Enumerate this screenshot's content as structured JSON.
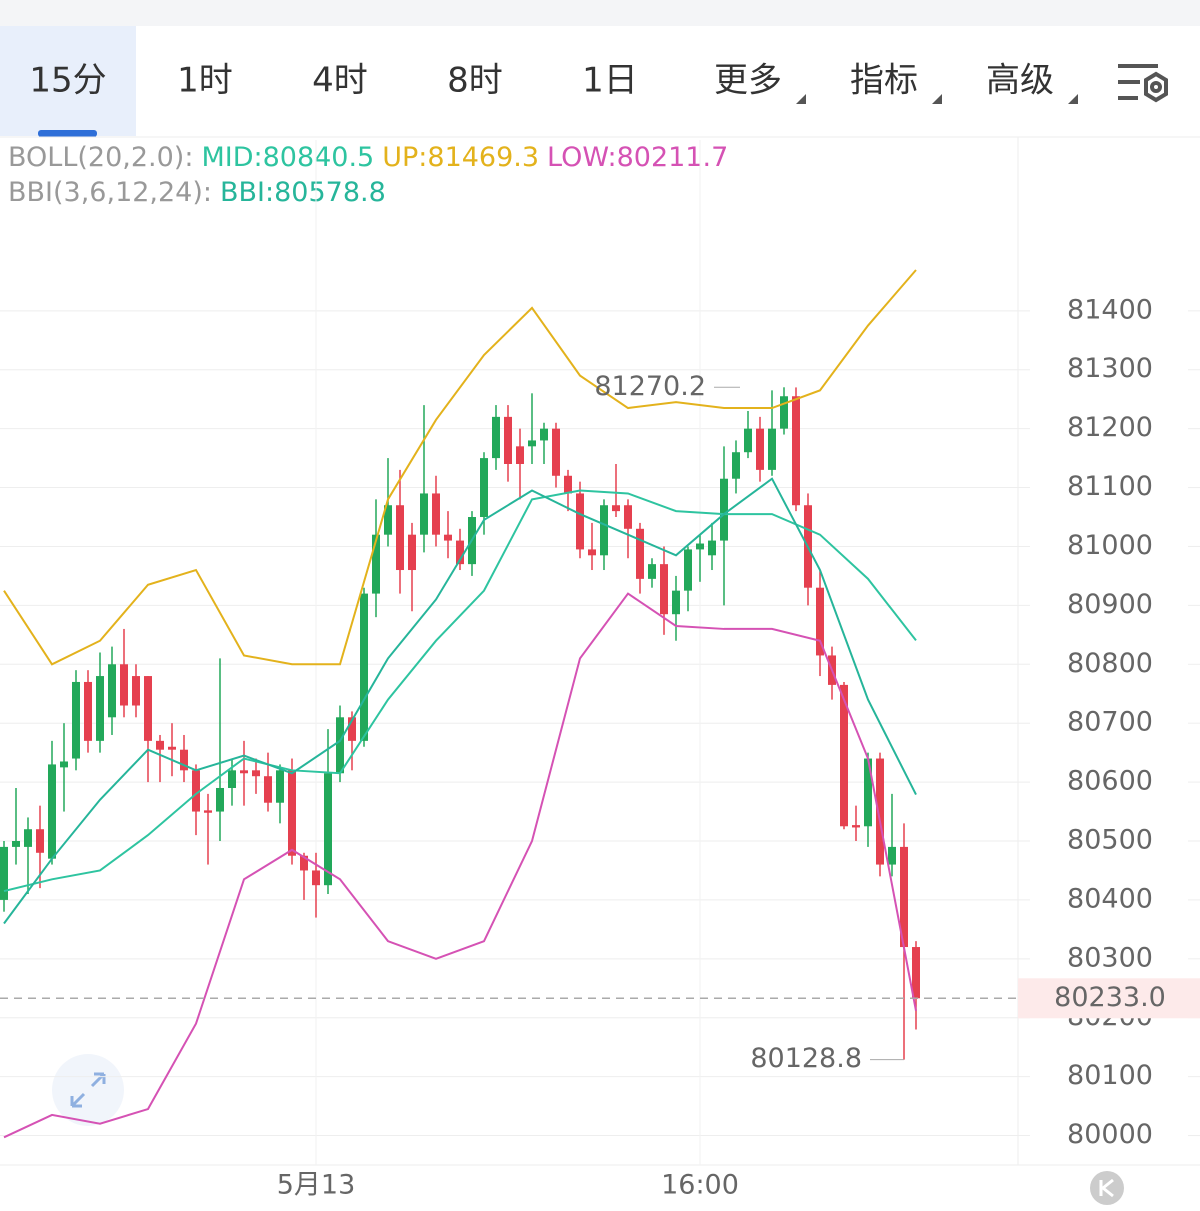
{
  "tabs": [
    "15分",
    "1时",
    "4时",
    "8时",
    "1日",
    "更多",
    "指标",
    "高级"
  ],
  "chart_data": {
    "type": "candlestick",
    "legend": [
      {
        "label": "BOLL(20,2.0):",
        "items": [
          {
            "text": "MID:80840.5",
            "color": "#2ec4a0"
          },
          {
            "text": "UP:81469.3",
            "color": "#e3b21c"
          },
          {
            "text": "LOW:80211.7",
            "color": "#d552b4"
          }
        ]
      },
      {
        "label": "BBI(3,6,12,24):",
        "items": [
          {
            "text": "BBI:80578.8",
            "color": "#26b59a"
          }
        ]
      }
    ],
    "categories": [
      null,
      null,
      null,
      null,
      null,
      null,
      null,
      null,
      null,
      null,
      null,
      null,
      null,
      null,
      null,
      null,
      null,
      null,
      null,
      null,
      null,
      null,
      null,
      null,
      null,
      null,
      "5月13",
      null,
      null,
      null,
      null,
      null,
      null,
      null,
      null,
      null,
      null,
      null,
      null,
      null,
      null,
      null,
      null,
      null,
      null,
      null,
      null,
      null,
      null,
      null,
      null,
      null,
      null,
      null,
      null,
      null,
      null,
      null,
      "16:00",
      null,
      null,
      null,
      null,
      null,
      null,
      null,
      null,
      null,
      null,
      null,
      null,
      null,
      null,
      null,
      null,
      null,
      null
    ],
    "open": [
      80400,
      80490,
      80490,
      80520,
      80470,
      80625,
      80640,
      80770,
      80670,
      80710,
      80800,
      80780,
      80780,
      80670,
      80660,
      80655,
      80620,
      80552,
      80550,
      80590,
      80620,
      80620,
      80610,
      80565,
      80620,
      80475,
      80450,
      80425,
      80615,
      80710,
      80670,
      80920,
      81020,
      81070,
      81020,
      81020,
      81090,
      81020,
      81010,
      80970,
      81050,
      81150,
      81220,
      81170,
      81170,
      81180,
      81200,
      81120,
      81090,
      80995,
      80985,
      81070,
      81070,
      81030,
      80945,
      80970,
      80885,
      80925,
      80995,
      80985,
      81010,
      81115,
      81160,
      81200,
      81130,
      81200,
      81255,
      81070,
      80930,
      80815,
      80765,
      80527,
      80525,
      80640,
      80460,
      80490,
      80320
    ],
    "high": [
      80500,
      80590,
      80540,
      80560,
      80670,
      80700,
      80790,
      80790,
      80820,
      80830,
      80860,
      80800,
      80780,
      80680,
      80700,
      80680,
      80630,
      80580,
      80810,
      80640,
      80670,
      80640,
      80650,
      80630,
      80640,
      80480,
      80480,
      80690,
      80730,
      80720,
      80930,
      81080,
      81150,
      81130,
      81040,
      81240,
      81120,
      81060,
      81030,
      81060,
      81160,
      81240,
      81240,
      81200,
      81260,
      81210,
      81210,
      81130,
      81110,
      81040,
      81080,
      81140,
      81080,
      81040,
      80980,
      81000,
      80950,
      81000,
      81020,
      81040,
      81170,
      81180,
      81230,
      81220,
      81265,
      81270.2,
      81270,
      81090,
      80960,
      80830,
      80770,
      80560,
      80650,
      80650,
      80580,
      80530,
      80330
    ],
    "low": [
      80380,
      80460,
      80410,
      80420,
      80460,
      80550,
      80620,
      80650,
      80650,
      80680,
      80710,
      80710,
      80600,
      80600,
      80610,
      80600,
      80510,
      80460,
      80500,
      80560,
      80560,
      80580,
      80550,
      80530,
      80460,
      80400,
      80370,
      80410,
      80600,
      80620,
      80660,
      80880,
      81000,
      80920,
      80890,
      80990,
      81000,
      80980,
      80960,
      80950,
      81020,
      81130,
      81110,
      81080,
      81140,
      81140,
      81100,
      81060,
      80980,
      80960,
      80960,
      81050,
      80980,
      80920,
      80930,
      80850,
      80840,
      80890,
      80940,
      80960,
      80900,
      81090,
      81150,
      81110,
      81120,
      81190,
      81060,
      80900,
      80780,
      80740,
      80520,
      80500,
      80490,
      80440,
      80440,
      80128.8,
      80180
    ],
    "close": [
      80490,
      80500,
      80520,
      80480,
      80630,
      80635,
      80770,
      80670,
      80780,
      80800,
      80730,
      80730,
      80670,
      80655,
      80655,
      80620,
      80550,
      80548,
      80590,
      80620,
      80615,
      80610,
      80565,
      80620,
      80475,
      80450,
      80425,
      80615,
      80710,
      80670,
      80920,
      81020,
      81070,
      80960,
      80960,
      81090,
      81020,
      81010,
      80970,
      81050,
      81150,
      81220,
      81140,
      81140,
      81180,
      81200,
      81120,
      81090,
      80995,
      80985,
      81070,
      81060,
      81030,
      80945,
      80970,
      80885,
      80925,
      80995,
      81005,
      81010,
      81115,
      81160,
      81200,
      81130,
      81200,
      81255,
      81070,
      80930,
      80815,
      80765,
      80525,
      80523,
      80640,
      80460,
      80490,
      80320,
      80233
    ],
    "up_color": "#22a85a",
    "down_color": "#e5404f",
    "lines": [
      {
        "color": "#e3b21c",
        "x": [
          0,
          4,
          8,
          12,
          16,
          20,
          24,
          28,
          32,
          36,
          40,
          44,
          48,
          52,
          56,
          60,
          64,
          68,
          72,
          76
        ],
        "values": [
          80925,
          80800,
          80840,
          80935,
          80960,
          80815,
          80800,
          80800,
          81080,
          81215,
          81325,
          81405,
          81290,
          81235,
          81245,
          81235,
          81235,
          81265,
          81375,
          81469.3
        ]
      },
      {
        "color": "#2ec4a0",
        "x": [
          0,
          4,
          8,
          12,
          16,
          20,
          24,
          28,
          32,
          36,
          40,
          44,
          48,
          52,
          56,
          60,
          64,
          68,
          72,
          76
        ],
        "values": [
          80415,
          80435,
          80450,
          80510,
          80580,
          80640,
          80620,
          80615,
          80740,
          80840,
          80925,
          81080,
          81095,
          81090,
          81060,
          81055,
          81055,
          81020,
          80945,
          80840.5
        ]
      },
      {
        "color": "#d552b4",
        "x": [
          0,
          4,
          8,
          12,
          16,
          20,
          24,
          28,
          32,
          36,
          40,
          44,
          48,
          52,
          56,
          60,
          64,
          68,
          72,
          76
        ],
        "values": [
          79997,
          80035,
          80020,
          80045,
          80190,
          80435,
          80485,
          80435,
          80330,
          80300,
          80330,
          80500,
          80810,
          80920,
          80865,
          80860,
          80860,
          80840,
          80640,
          80211.7
        ]
      },
      {
        "color": "#26b59a",
        "x": [
          0,
          4,
          8,
          12,
          16,
          20,
          24,
          28,
          32,
          36,
          40,
          44,
          48,
          52,
          56,
          60,
          64,
          68,
          72,
          76
        ],
        "values": [
          80360,
          80470,
          80570,
          80655,
          80620,
          80645,
          80615,
          80670,
          80810,
          80910,
          81045,
          81095,
          81055,
          81020,
          80985,
          81055,
          81115,
          80960,
          80740,
          80578.8
        ]
      }
    ],
    "current_price": {
      "value": 80233,
      "label": "80233.0"
    },
    "ylim": [
      79950,
      81690
    ],
    "yticks": [
      80000,
      80100,
      80200,
      80300,
      80400,
      80500,
      80600,
      80700,
      80800,
      80900,
      81000,
      81100,
      81200,
      81300,
      81400
    ],
    "grid": true
  }
}
